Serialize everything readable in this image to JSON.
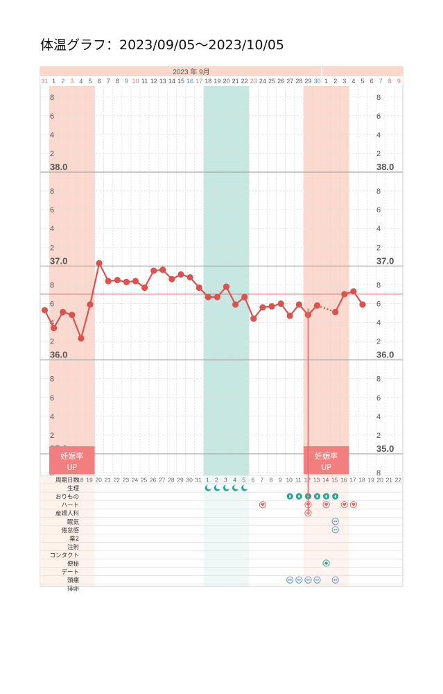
{
  "page": {
    "title": "体温グラフ：2023/09/05～2023/10/05"
  },
  "chart_data": {
    "type": "line",
    "title": "体温グラフ：2023/09/05～2023/10/05",
    "month_header": "2023 年  9月",
    "x": [
      "31",
      "1",
      "2",
      "3",
      "4",
      "5",
      "6",
      "7",
      "8",
      "9",
      "10",
      "11",
      "12",
      "13",
      "14",
      "15",
      "16",
      "17",
      "18",
      "19",
      "20",
      "21",
      "22",
      "23",
      "24",
      "25",
      "26",
      "27",
      "28",
      "29",
      "30",
      "1",
      "2",
      "3",
      "4",
      "5",
      "6",
      "7",
      "8",
      "9"
    ],
    "x_colors": [
      "red",
      "black",
      "blue",
      "red",
      "black",
      "black",
      "black",
      "black",
      "black",
      "blue",
      "red",
      "black",
      "black",
      "black",
      "black",
      "black",
      "blue",
      "red",
      "black",
      "black",
      "black",
      "black",
      "black",
      "red",
      "black",
      "black",
      "black",
      "black",
      "black",
      "black",
      "blue",
      "black",
      "black",
      "black",
      "black",
      "black",
      "black",
      "blue",
      "red",
      "red"
    ],
    "cycle_days": [
      "18",
      "19",
      "20",
      "21",
      "22",
      "23",
      "24",
      "25",
      "26",
      "27",
      "28",
      "29",
      "30",
      "31",
      "1",
      "2",
      "3",
      "4",
      "5",
      "6",
      "7",
      "8",
      "9",
      "10",
      "11",
      "12",
      "13",
      "14",
      "15",
      "16",
      "17",
      "18",
      "19",
      "20",
      "21",
      "22"
    ],
    "ylim": [
      34.8,
      38.85
    ],
    "y_labels": [
      {
        "v": 38.8,
        "t": "8"
      },
      {
        "v": 38.6,
        "t": "6"
      },
      {
        "v": 38.4,
        "t": "4"
      },
      {
        "v": 38.2,
        "t": "2"
      },
      {
        "v": 38.0,
        "t": "38.0"
      },
      {
        "v": 37.8,
        "t": "8"
      },
      {
        "v": 37.6,
        "t": "6"
      },
      {
        "v": 37.4,
        "t": "4"
      },
      {
        "v": 37.2,
        "t": "2"
      },
      {
        "v": 37.0,
        "t": "37.0"
      },
      {
        "v": 36.8,
        "t": "8"
      },
      {
        "v": 36.6,
        "t": "6"
      },
      {
        "v": 36.4,
        "t": "4"
      },
      {
        "v": 36.2,
        "t": "2"
      },
      {
        "v": 36.0,
        "t": "36.0"
      },
      {
        "v": 35.8,
        "t": "8"
      },
      {
        "v": 35.6,
        "t": "6"
      },
      {
        "v": 35.4,
        "t": "4"
      },
      {
        "v": 35.2,
        "t": "2"
      },
      {
        "v": 35.0,
        "t": "35.0"
      },
      {
        "v": 34.8,
        "t": "8"
      }
    ],
    "reference_line": 36.7,
    "series": [
      {
        "values": [
          36.53,
          36.34,
          36.51,
          36.48,
          36.23,
          36.59,
          37.03,
          36.84,
          36.85,
          36.83,
          36.84,
          36.77,
          36.95,
          36.96,
          36.86,
          36.91,
          36.88,
          36.77,
          36.67,
          36.67,
          36.78,
          36.59,
          36.67,
          36.44,
          36.56,
          36.57,
          36.6,
          36.47,
          36.59,
          36.48,
          36.58,
          null,
          36.51,
          36.7,
          36.73,
          36.59,
          null,
          null,
          null,
          null
        ],
        "color": "#d9534f",
        "dotted_segments": [
          [
            30,
            32
          ]
        ]
      }
    ],
    "bands": [
      {
        "from": 1,
        "to": 5,
        "kind": "period",
        "color": "#fcd9ce"
      },
      {
        "from": 18,
        "to": 22,
        "kind": "period2",
        "color": "#c6e7e2"
      },
      {
        "from": 29,
        "to": 33,
        "kind": "period",
        "color": "#fcd9ce"
      }
    ],
    "badges": [
      {
        "from": 1,
        "to": 5,
        "text1": "妊娠率",
        "text2": "UP"
      },
      {
        "from": 29,
        "to": 33,
        "text1": "妊娠率",
        "text2": "UP"
      }
    ],
    "events_table": {
      "row_labels": [
        "周期日数",
        "生理",
        "おりもの",
        "ハート",
        "産婦人科",
        "眠気",
        "倦怠感",
        "薬2",
        "注射",
        "コンタクト",
        "便秘",
        "デート",
        "頭痛",
        "排卵"
      ],
      "marks": [
        {
          "row": 1,
          "cols": [
            18,
            19,
            20,
            21,
            22
          ],
          "icon": "moon-icon"
        },
        {
          "row": 2,
          "cols": [
            27,
            28,
            29,
            30,
            31,
            32
          ],
          "icon": "drop-icon"
        },
        {
          "row": 3,
          "cols": [
            24,
            29,
            31,
            33,
            34
          ],
          "icon": "heart-icon"
        },
        {
          "row": 4,
          "cols": [
            29
          ],
          "icon": "plus-icon"
        },
        {
          "row": 5,
          "cols": [
            32
          ],
          "icon": "zz-icon"
        },
        {
          "row": 6,
          "cols": [
            32
          ],
          "icon": "tired-icon"
        },
        {
          "row": 10,
          "cols": [
            31
          ],
          "icon": "snow-icon"
        },
        {
          "row": 12,
          "cols": [
            27,
            28,
            29,
            30,
            32
          ],
          "icon": "headache-icon"
        }
      ]
    }
  }
}
